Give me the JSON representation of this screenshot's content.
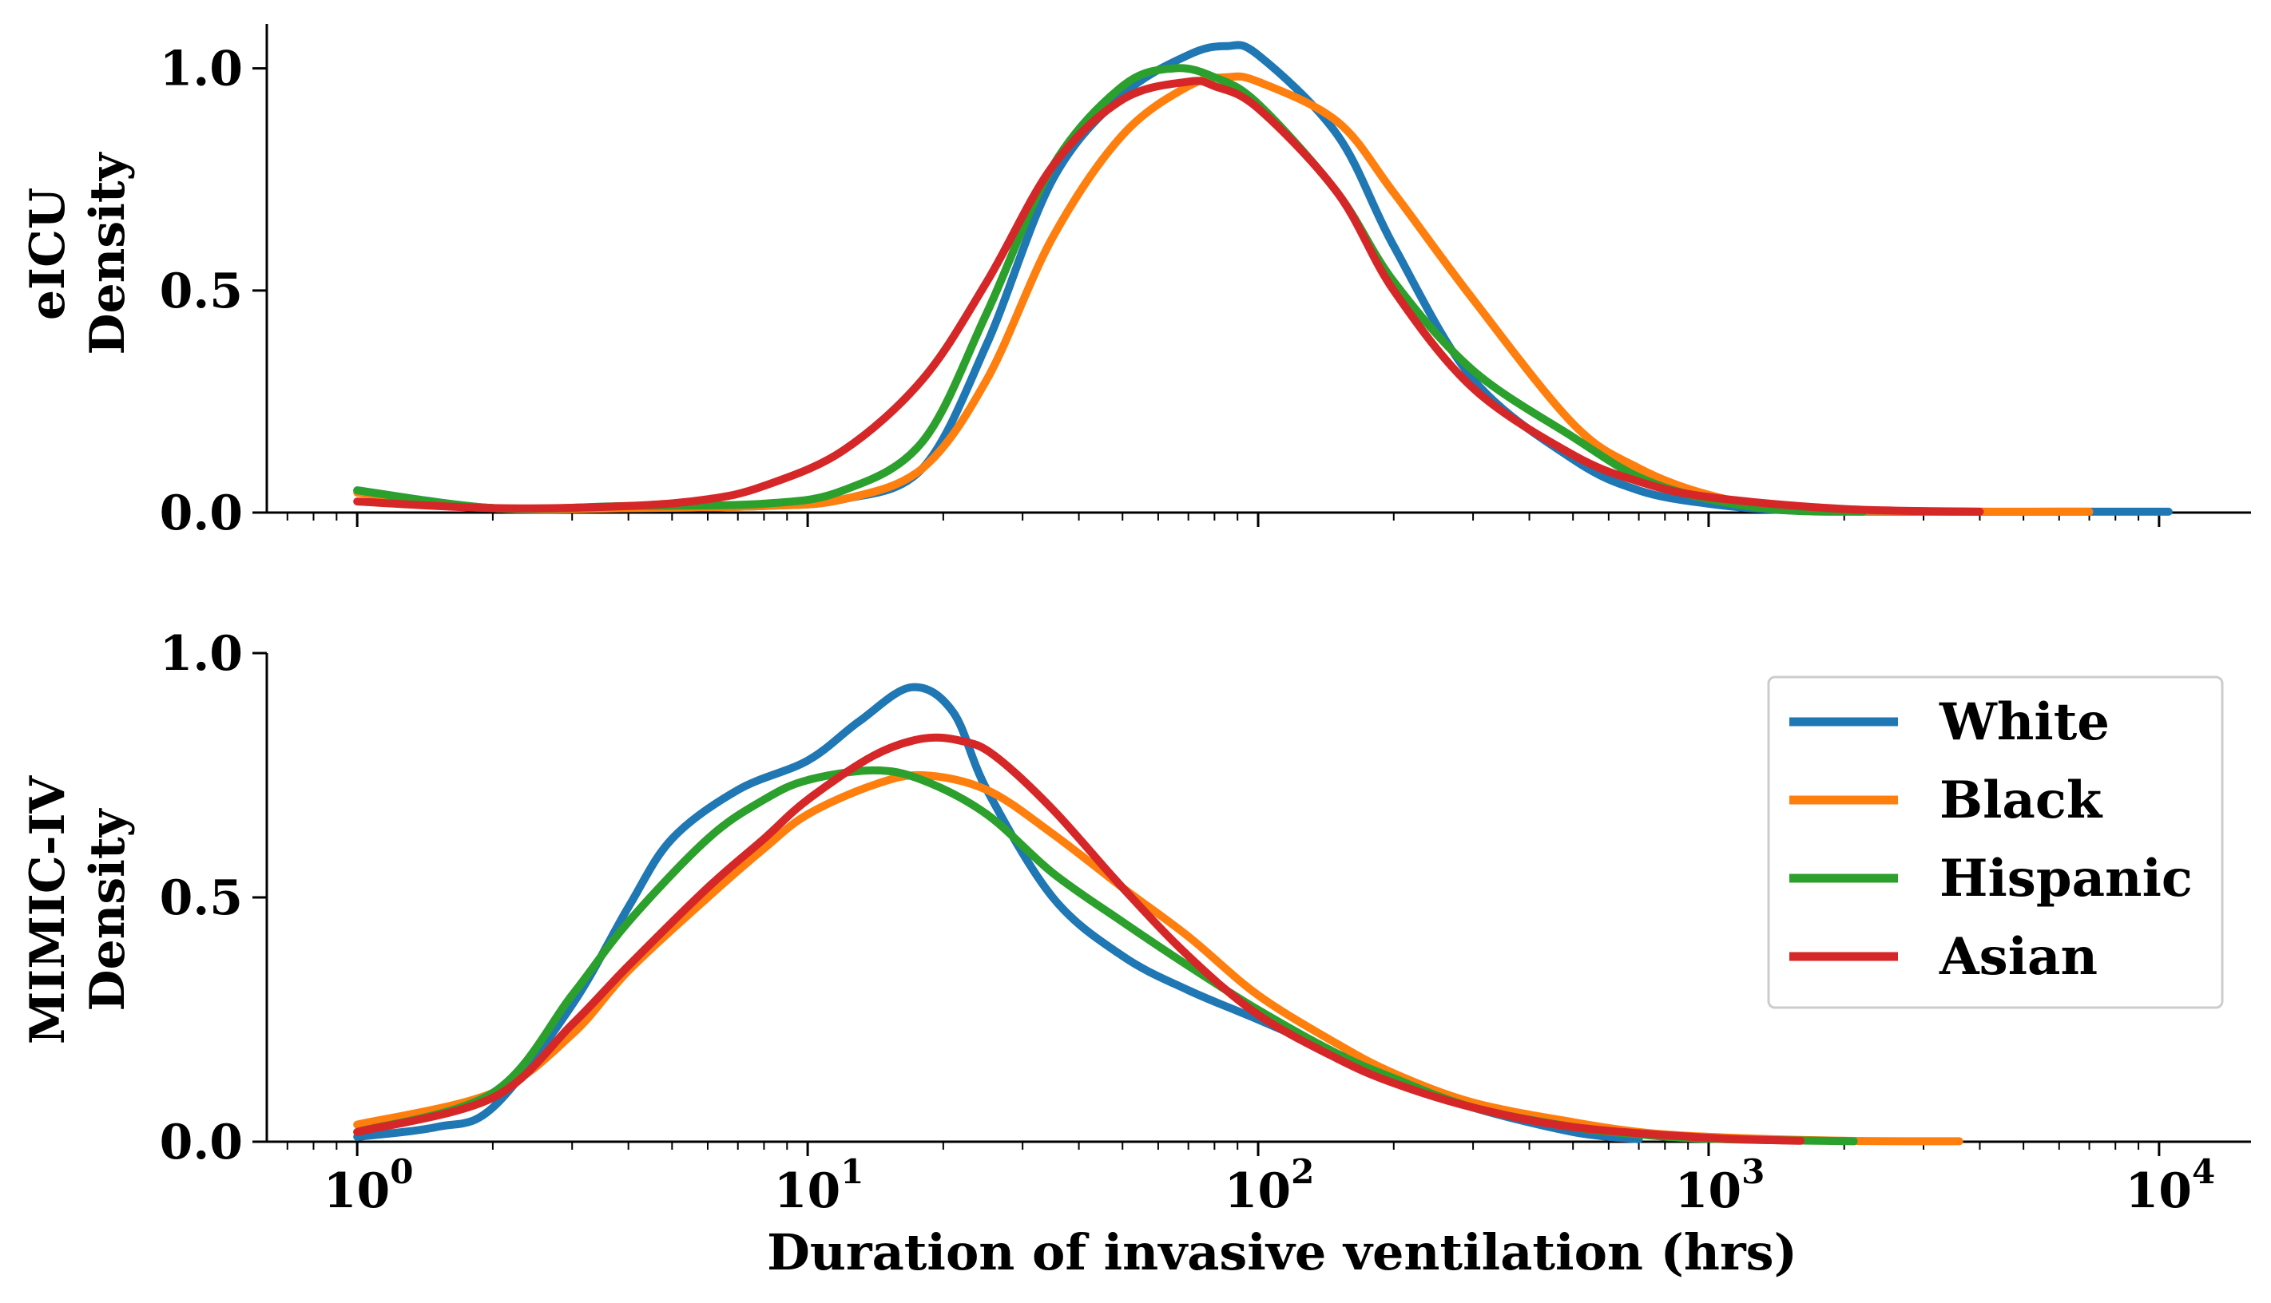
{
  "figure": {
    "xlabel": "Duration of invasive ventilation (hrs)",
    "xscale": "log",
    "x_tick_labels": [
      {
        "base": "10",
        "exp": "0",
        "value": 1
      },
      {
        "base": "10",
        "exp": "1",
        "value": 10
      },
      {
        "base": "10",
        "exp": "2",
        "value": 100
      },
      {
        "base": "10",
        "exp": "3",
        "value": 1000
      },
      {
        "base": "10",
        "exp": "4",
        "value": 10000
      }
    ]
  },
  "legend": {
    "placement": "right-middle of lower panel",
    "entries": [
      "White",
      "Black",
      "Hispanic",
      "Asian"
    ]
  },
  "chart_data": [
    {
      "type": "line",
      "panel": "eICU",
      "ylabel": [
        "eICU",
        "Density"
      ],
      "xlabel": "",
      "xlim": [
        0.63,
        16000
      ],
      "ylim": [
        0,
        1.1
      ],
      "y_ticks": [
        "0.0",
        "0.5",
        "1.0"
      ],
      "y_tick_values": [
        0,
        0.5,
        1.0
      ],
      "series": [
        {
          "name": "White",
          "color": "#1f77b4",
          "x": [
            1,
            2,
            4,
            8,
            12,
            18,
            25,
            35,
            50,
            70,
            85,
            100,
            150,
            200,
            300,
            500,
            700,
            1000,
            1500,
            3000,
            6000,
            10500
          ],
          "y": [
            0.05,
            0.01,
            0.01,
            0.015,
            0.03,
            0.1,
            0.38,
            0.75,
            0.94,
            1.03,
            1.05,
            1.03,
            0.85,
            0.6,
            0.3,
            0.12,
            0.05,
            0.02,
            0.005,
            0.002,
            0.002,
            0.002
          ]
        },
        {
          "name": "Black",
          "color": "#ff7f0e",
          "x": [
            1,
            2,
            4,
            8,
            12,
            18,
            25,
            35,
            50,
            70,
            85,
            100,
            150,
            200,
            300,
            500,
            700,
            1000,
            1500,
            3000,
            7000
          ],
          "y": [
            0.045,
            0.01,
            0.01,
            0.015,
            0.03,
            0.1,
            0.3,
            0.62,
            0.85,
            0.96,
            0.98,
            0.97,
            0.88,
            0.72,
            0.48,
            0.2,
            0.1,
            0.04,
            0.01,
            0.003,
            0.002
          ]
        },
        {
          "name": "Hispanic",
          "color": "#2ca02c",
          "x": [
            1,
            2,
            4,
            8,
            12,
            18,
            25,
            35,
            50,
            65,
            80,
            100,
            150,
            200,
            300,
            500,
            700,
            1000,
            1500,
            2200
          ],
          "y": [
            0.05,
            0.01,
            0.015,
            0.02,
            0.05,
            0.16,
            0.45,
            0.78,
            0.96,
            1.0,
            0.98,
            0.92,
            0.72,
            0.52,
            0.32,
            0.17,
            0.08,
            0.03,
            0.005,
            0.002
          ]
        },
        {
          "name": "Asian",
          "color": "#d62728",
          "x": [
            1,
            2,
            4,
            6,
            8,
            12,
            18,
            25,
            35,
            50,
            70,
            80,
            100,
            150,
            200,
            300,
            500,
            700,
            1000,
            2000,
            4000
          ],
          "y": [
            0.025,
            0.01,
            0.015,
            0.03,
            0.06,
            0.14,
            0.3,
            0.52,
            0.78,
            0.93,
            0.97,
            0.96,
            0.91,
            0.72,
            0.5,
            0.28,
            0.13,
            0.07,
            0.035,
            0.008,
            0.002
          ]
        }
      ]
    },
    {
      "type": "line",
      "panel": "MIMIC-IV",
      "ylabel": [
        "MIMIC-IV",
        "Density"
      ],
      "xlabel": "Duration of invasive ventilation (hrs)",
      "xlim": [
        0.63,
        16000
      ],
      "ylim": [
        0,
        1.0
      ],
      "y_ticks": [
        "0.0",
        "0.5",
        "1.0"
      ],
      "y_tick_values": [
        0,
        0.5,
        1.0
      ],
      "series": [
        {
          "name": "White",
          "color": "#1f77b4",
          "x": [
            1,
            1.5,
            2,
            3,
            4,
            5,
            7,
            10,
            13,
            17,
            21,
            25,
            35,
            50,
            70,
            100,
            150,
            200,
            300,
            500,
            700
          ],
          "y": [
            0.01,
            0.03,
            0.07,
            0.28,
            0.48,
            0.62,
            0.72,
            0.78,
            0.86,
            0.93,
            0.88,
            0.72,
            0.5,
            0.38,
            0.31,
            0.25,
            0.18,
            0.13,
            0.07,
            0.02,
            0.005
          ]
        },
        {
          "name": "Black",
          "color": "#ff7f0e",
          "x": [
            1,
            2,
            3,
            4,
            6,
            8,
            10,
            14,
            18,
            25,
            35,
            50,
            70,
            100,
            150,
            200,
            300,
            500,
            700,
            1000,
            2000,
            3600
          ],
          "y": [
            0.035,
            0.1,
            0.22,
            0.35,
            0.5,
            0.6,
            0.67,
            0.73,
            0.75,
            0.72,
            0.63,
            0.52,
            0.42,
            0.3,
            0.2,
            0.14,
            0.08,
            0.04,
            0.02,
            0.01,
            0.002,
            0.001
          ]
        },
        {
          "name": "Hispanic",
          "color": "#2ca02c",
          "x": [
            1,
            2,
            3,
            4,
            6,
            8,
            10,
            14,
            18,
            25,
            35,
            50,
            70,
            100,
            150,
            200,
            300,
            500,
            700,
            1000,
            2100
          ],
          "y": [
            0.02,
            0.1,
            0.3,
            0.45,
            0.62,
            0.7,
            0.74,
            0.76,
            0.74,
            0.67,
            0.55,
            0.45,
            0.36,
            0.27,
            0.18,
            0.13,
            0.07,
            0.03,
            0.015,
            0.006,
            0.001
          ]
        },
        {
          "name": "Asian",
          "color": "#d62728",
          "x": [
            1,
            2,
            3,
            4,
            6,
            8,
            10,
            14,
            18,
            22,
            26,
            35,
            50,
            70,
            100,
            150,
            200,
            300,
            500,
            1000,
            1600
          ],
          "y": [
            0.02,
            0.09,
            0.24,
            0.36,
            0.52,
            0.62,
            0.7,
            0.79,
            0.825,
            0.82,
            0.79,
            0.68,
            0.52,
            0.38,
            0.26,
            0.17,
            0.12,
            0.07,
            0.03,
            0.008,
            0.002
          ]
        }
      ]
    }
  ]
}
